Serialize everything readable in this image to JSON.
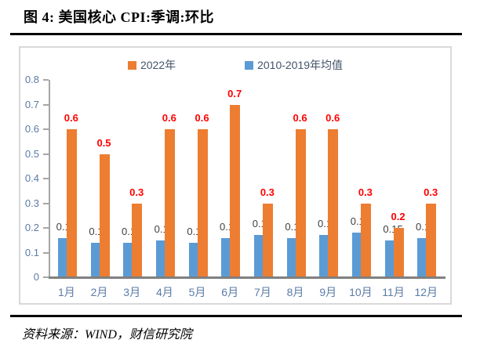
{
  "page": {
    "title": "图 4:  美国核心 CPI:季调:环比",
    "source": "资料来源：WIND，财信研究院"
  },
  "chart_data": {
    "type": "bar",
    "title": "美国核心 CPI:季调:环比",
    "categories": [
      "1月",
      "2月",
      "3月",
      "4月",
      "5月",
      "6月",
      "7月",
      "8月",
      "9月",
      "10月",
      "11月",
      "12月"
    ],
    "series": [
      {
        "name": "2022年",
        "color": "#ed7d31",
        "label_color": "#ff0000",
        "values": [
          0.6,
          0.5,
          0.3,
          0.6,
          0.6,
          0.7,
          0.3,
          0.6,
          0.6,
          0.3,
          0.2,
          0.3
        ],
        "labels": [
          "0.6",
          "0.5",
          "0.3",
          "0.6",
          "0.6",
          "0.7",
          "0.3",
          "0.6",
          "0.6",
          "0.3",
          "0.2",
          "0.3"
        ]
      },
      {
        "name": "2010-2019年均值",
        "color": "#5b9bd5",
        "label_color": "#404040",
        "values": [
          0.16,
          0.14,
          0.14,
          0.15,
          0.14,
          0.16,
          0.17,
          0.16,
          0.17,
          0.18,
          0.15,
          0.16
        ],
        "labels": [
          "0.16",
          "0.14",
          "0.14",
          "0.15",
          "0.14",
          "0.16",
          "0.17",
          "0.16",
          "0.17",
          "0.18",
          "0.15",
          "0.16"
        ]
      }
    ],
    "xlabel": "",
    "ylabel": "",
    "ylim": [
      0,
      0.8
    ],
    "yticks": [
      "0",
      "0.1",
      "0.2",
      "0.3",
      "0.4",
      "0.5",
      "0.6",
      "0.7",
      "0.8"
    ],
    "legend_position": "top",
    "grid": false,
    "colors": {
      "axis_line": "#a6a6a6",
      "baseline": "#808080",
      "axis_text": "#5b7ba6",
      "legend_text": "#44546a",
      "chart_border": "#d9d9d9",
      "divider": "#000000"
    }
  }
}
